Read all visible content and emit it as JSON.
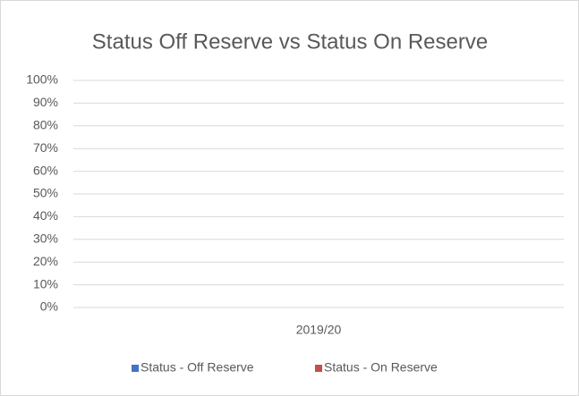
{
  "chart_data": {
    "type": "stacked_bar",
    "title": "Status Off Reserve vs Status On Reserve",
    "categories": [
      "2019/20"
    ],
    "series": [
      {
        "name": "Status - Off Reserve",
        "color": "#4472c4",
        "values": [
          0
        ]
      },
      {
        "name": "Status - On Reserve",
        "color": "#c0504d",
        "values": [
          0
        ]
      }
    ],
    "ylim": [
      0,
      100
    ],
    "yticks": [
      {
        "value": 0,
        "label": "0%"
      },
      {
        "value": 10,
        "label": "10%"
      },
      {
        "value": 20,
        "label": "20%"
      },
      {
        "value": 30,
        "label": "30%"
      },
      {
        "value": 40,
        "label": "40%"
      },
      {
        "value": 50,
        "label": "50%"
      },
      {
        "value": 60,
        "label": "60%"
      },
      {
        "value": 70,
        "label": "70%"
      },
      {
        "value": 80,
        "label": "80%"
      },
      {
        "value": 90,
        "label": "90%"
      },
      {
        "value": 100,
        "label": "100%"
      }
    ],
    "grid": true,
    "legend": "bottom"
  }
}
